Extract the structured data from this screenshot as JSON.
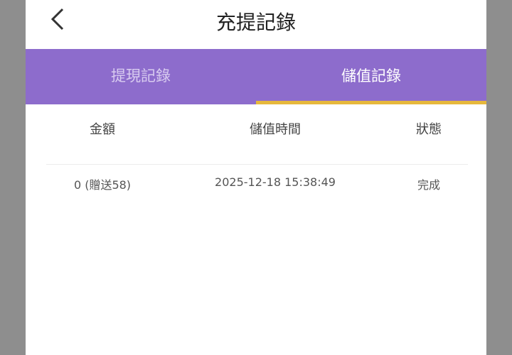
{
  "header": {
    "title": "充提記錄",
    "back_icon": "chevron-left-icon"
  },
  "tabs": [
    {
      "label": "提現記錄",
      "active": false
    },
    {
      "label": "儲值記錄",
      "active": true
    }
  ],
  "colors": {
    "tab_bar": "#8d6ccc",
    "tab_indicator": "#e6b83c"
  },
  "table": {
    "columns": [
      "金額",
      "儲值時間",
      "狀態"
    ],
    "rows": [
      [
        "0 (贈送58)",
        "2025-12-18 15:38:49",
        "完成"
      ]
    ]
  }
}
